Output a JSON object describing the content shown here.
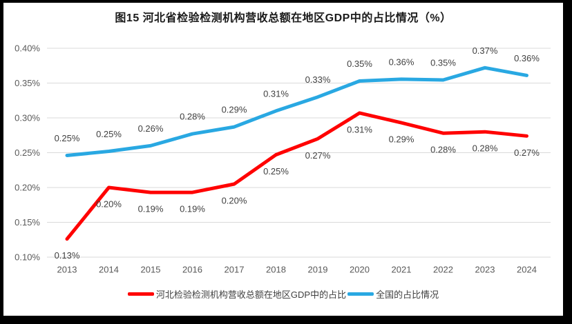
{
  "chart_data": {
    "type": "line",
    "title": "图15 河北省检验检测机构营收总额在地区GDP中的占比情况（%）",
    "categories": [
      "2013",
      "2014",
      "2015",
      "2016",
      "2017",
      "2018",
      "2019",
      "2020",
      "2021",
      "2022",
      "2023",
      "2024"
    ],
    "series": [
      {
        "name": "河北检验检测机构营收总额在地区GDP中的占比",
        "color": "#FF0000",
        "data_labels": [
          "0.13%",
          "0.20%",
          "0.19%",
          "0.19%",
          "0.20%",
          "0.25%",
          "0.27%",
          "0.31%",
          "0.29%",
          "0.28%",
          "0.28%",
          "0.27%"
        ],
        "values_pct": [
          0.13,
          0.2,
          0.19,
          0.19,
          0.2,
          0.25,
          0.27,
          0.31,
          0.29,
          0.28,
          0.28,
          0.27
        ],
        "plot_values_pct": [
          0.126,
          0.2,
          0.193,
          0.193,
          0.205,
          0.247,
          0.27,
          0.307,
          0.293,
          0.278,
          0.28,
          0.274
        ],
        "label_side": "below"
      },
      {
        "name": "全国的占比情况",
        "color": "#29A8E2",
        "data_labels": [
          "0.25%",
          "0.25%",
          "0.26%",
          "0.28%",
          "0.29%",
          "0.31%",
          "0.33%",
          "0.35%",
          "0.36%",
          "0.35%",
          "0.37%",
          "0.36%"
        ],
        "values_pct": [
          0.25,
          0.25,
          0.26,
          0.28,
          0.29,
          0.31,
          0.33,
          0.35,
          0.36,
          0.35,
          0.37,
          0.36
        ],
        "plot_values_pct": [
          0.246,
          0.252,
          0.26,
          0.277,
          0.287,
          0.31,
          0.33,
          0.353,
          0.3555,
          0.3545,
          0.372,
          0.361
        ],
        "label_side": "above"
      }
    ],
    "y_axis": {
      "ticks": [
        "0.40%",
        "0.35%",
        "0.30%",
        "0.25%",
        "0.20%",
        "0.15%",
        "0.10%"
      ],
      "tick_values": [
        0.4,
        0.35,
        0.3,
        0.25,
        0.2,
        0.15,
        0.1
      ],
      "min": 0.1,
      "max": 0.4
    },
    "grid": true,
    "legend_position": "bottom",
    "colors": {
      "gridline": "#D9D9D9",
      "axis_label": "#595959",
      "data_label": "#404040",
      "title": "#1A1A1A",
      "frame_border": "#000000",
      "background": "#FFFFFF"
    }
  }
}
